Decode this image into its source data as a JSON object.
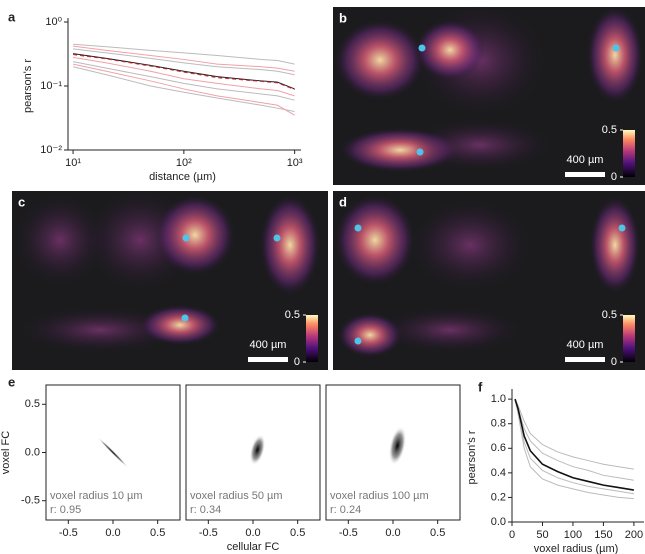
{
  "images": [
    {
      "panel": "b",
      "scale_bar": "400 µm",
      "colorbar_ticks": [
        0.5,
        0
      ]
    },
    {
      "panel": "c",
      "scale_bar": "400 µm",
      "colorbar_ticks": [
        0.5,
        0
      ]
    },
    {
      "panel": "d",
      "scale_bar": "400 µm",
      "colorbar_ticks": [
        0.5,
        0
      ]
    }
  ],
  "chart_data": [
    {
      "type": "line",
      "panel": "a",
      "x_label": "distance (µm)",
      "y_label": "pearson's r",
      "log_x": true,
      "log_y": true,
      "x": [
        10,
        20,
        50,
        100,
        200,
        500,
        700,
        1000
      ],
      "xlim": [
        9,
        1050
      ],
      "ylim": [
        0.01,
        1
      ],
      "xticks": [
        {
          "value": 10,
          "label": "10¹"
        },
        {
          "value": 100,
          "label": "10²"
        },
        {
          "value": 1000,
          "label": "10³"
        }
      ],
      "yticks": [
        {
          "value": 0.01,
          "label": "10⁻²"
        },
        {
          "value": 0.1,
          "label": "10⁻¹"
        },
        {
          "value": 1,
          "label": "10⁰"
        }
      ],
      "series": [
        {
          "color": "#bbbbbb",
          "values": [
            0.45,
            0.41,
            0.36,
            0.33,
            0.3,
            0.26,
            0.25,
            0.22
          ]
        },
        {
          "color": "#bbbbbb",
          "values": [
            0.38,
            0.33,
            0.27,
            0.23,
            0.2,
            0.18,
            0.17,
            0.15
          ]
        },
        {
          "color": "#bbbbbb",
          "values": [
            0.24,
            0.19,
            0.14,
            0.11,
            0.09,
            0.075,
            0.07,
            0.06
          ]
        },
        {
          "color": "#bbbbbb",
          "values": [
            0.2,
            0.15,
            0.1,
            0.08,
            0.065,
            0.05,
            0.045,
            0.04
          ]
        },
        {
          "color": "#f2a0a8",
          "values": [
            0.42,
            0.36,
            0.3,
            0.26,
            0.22,
            0.2,
            0.19,
            0.17
          ]
        },
        {
          "color": "#f2a0a8",
          "values": [
            0.28,
            0.23,
            0.17,
            0.13,
            0.11,
            0.09,
            0.085,
            0.07
          ]
        },
        {
          "color": "#f2a0a8",
          "values": [
            0.22,
            0.17,
            0.12,
            0.09,
            0.07,
            0.055,
            0.05,
            0.035
          ]
        },
        {
          "color": "#222222",
          "values": [
            0.32,
            0.27,
            0.21,
            0.17,
            0.14,
            0.12,
            0.115,
            0.09
          ]
        },
        {
          "color": "#d0202a",
          "dashed": true,
          "values": [
            0.31,
            0.265,
            0.205,
            0.165,
            0.135,
            0.118,
            0.112,
            0.088
          ]
        }
      ]
    },
    {
      "type": "density",
      "panel": "e",
      "y_label": "voxel FC",
      "full_box": true,
      "xlim": [
        -0.75,
        0.75
      ],
      "ylim": [
        -0.7,
        0.7
      ],
      "xticks": [
        -0.5,
        {
          "value": 0,
          "label": "0.0"
        },
        0.5
      ],
      "yticks": [
        -0.5,
        {
          "value": 0,
          "label": "0.0"
        },
        0.5
      ],
      "annotations": [
        "voxel radius 10 µm",
        "r: 0.95"
      ]
    },
    {
      "type": "density",
      "x_label": "cellular FC",
      "full_box": true,
      "xlim": [
        -0.75,
        0.75
      ],
      "xticks": [
        -0.5,
        {
          "value": 0,
          "label": "0.0"
        },
        0.5
      ],
      "annotations": [
        "voxel radius 50 µm",
        "r: 0.34"
      ]
    },
    {
      "type": "density",
      "full_box": true,
      "xlim": [
        -0.75,
        0.75
      ],
      "xticks": [
        -0.5,
        {
          "value": 0,
          "label": "0.0"
        },
        0.5
      ],
      "annotations": [
        "voxel radius 100 µm",
        "r: 0.24"
      ]
    },
    {
      "type": "line",
      "panel": "f",
      "x_label": "voxel radius (µm)",
      "y_label": "pearson's r",
      "x": [
        5,
        10,
        20,
        30,
        50,
        75,
        100,
        125,
        150,
        175,
        200
      ],
      "xlim": [
        0,
        210
      ],
      "ylim": [
        0,
        1.05
      ],
      "xticks": [
        0,
        50,
        100,
        150,
        200
      ],
      "yticks": [
        {
          "value": 0,
          "label": "0.0"
        },
        0.2,
        0.4,
        0.6,
        0.8,
        {
          "value": 1,
          "label": "1.0"
        }
      ],
      "series": [
        {
          "color": "#bbbbbb",
          "values": [
            1,
            0.95,
            0.82,
            0.72,
            0.63,
            0.57,
            0.53,
            0.5,
            0.47,
            0.45,
            0.43
          ]
        },
        {
          "color": "#bbbbbb",
          "values": [
            1,
            0.93,
            0.76,
            0.66,
            0.56,
            0.5,
            0.45,
            0.42,
            0.38,
            0.36,
            0.34
          ]
        },
        {
          "color": "#bbbbbb",
          "values": [
            1,
            0.9,
            0.65,
            0.52,
            0.42,
            0.36,
            0.32,
            0.29,
            0.27,
            0.25,
            0.23
          ]
        },
        {
          "color": "#bbbbbb",
          "values": [
            1,
            0.88,
            0.6,
            0.45,
            0.35,
            0.3,
            0.27,
            0.24,
            0.22,
            0.2,
            0.19
          ]
        },
        {
          "color": "#111111",
          "width": 1.6,
          "values": [
            1,
            0.92,
            0.7,
            0.58,
            0.47,
            0.41,
            0.36,
            0.33,
            0.3,
            0.28,
            0.26
          ]
        }
      ]
    }
  ]
}
